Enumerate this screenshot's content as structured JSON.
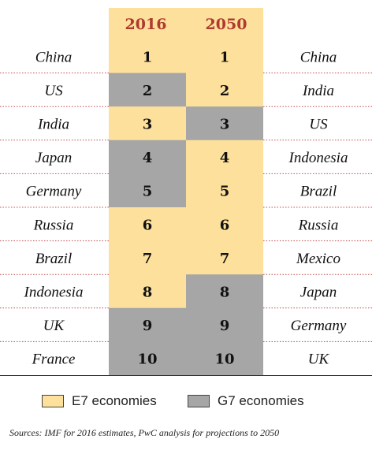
{
  "chart_data": {
    "type": "table",
    "columns": [
      "2016",
      "2050"
    ],
    "ranks": [
      "1",
      "2",
      "3",
      "4",
      "5",
      "6",
      "7",
      "8",
      "9",
      "10"
    ],
    "rows_2016": [
      {
        "country": "China",
        "rank": "1",
        "group": "E7"
      },
      {
        "country": "US",
        "rank": "2",
        "group": "G7"
      },
      {
        "country": "India",
        "rank": "3",
        "group": "E7"
      },
      {
        "country": "Japan",
        "rank": "4",
        "group": "G7"
      },
      {
        "country": "Germany",
        "rank": "5",
        "group": "G7"
      },
      {
        "country": "Russia",
        "rank": "6",
        "group": "E7"
      },
      {
        "country": "Brazil",
        "rank": "7",
        "group": "E7"
      },
      {
        "country": "Indonesia",
        "rank": "8",
        "group": "E7"
      },
      {
        "country": "UK",
        "rank": "9",
        "group": "G7"
      },
      {
        "country": "France",
        "rank": "10",
        "group": "G7"
      }
    ],
    "rows_2050": [
      {
        "country": "China",
        "rank": "1",
        "group": "E7"
      },
      {
        "country": "India",
        "rank": "2",
        "group": "E7"
      },
      {
        "country": "US",
        "rank": "3",
        "group": "G7"
      },
      {
        "country": "Indonesia",
        "rank": "4",
        "group": "E7"
      },
      {
        "country": "Brazil",
        "rank": "5",
        "group": "E7"
      },
      {
        "country": "Russia",
        "rank": "6",
        "group": "E7"
      },
      {
        "country": "Mexico",
        "rank": "7",
        "group": "E7"
      },
      {
        "country": "Japan",
        "rank": "8",
        "group": "G7"
      },
      {
        "country": "Germany",
        "rank": "9",
        "group": "G7"
      },
      {
        "country": "UK",
        "rank": "10",
        "group": "G7"
      }
    ],
    "legend": [
      {
        "key": "E7",
        "label": "E7 economies",
        "color": "#fce09c"
      },
      {
        "key": "G7",
        "label": "G7 economies",
        "color": "#a6a6a6"
      }
    ],
    "colors": {
      "E7": "#fce09c",
      "G7": "#a6a6a6",
      "header": "#b03a2e",
      "separator": "#c0504d"
    }
  },
  "source": "Sources: IMF for 2016 estimates, PwC analysis for projections to 2050"
}
